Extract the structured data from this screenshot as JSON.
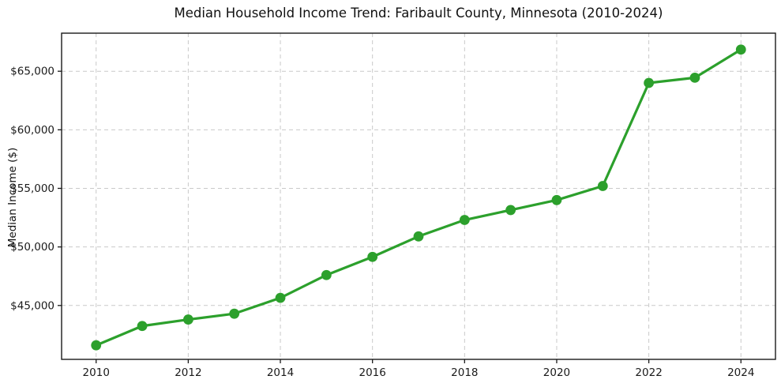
{
  "chart_data": {
    "type": "line",
    "title": "Median Household Income Trend: Faribault County, Minnesota (2010-2024)",
    "xlabel": "",
    "ylabel": "Median Income ($)",
    "series": [
      {
        "name": "Median Household Income",
        "x": [
          2010,
          2011,
          2012,
          2013,
          2014,
          2015,
          2016,
          2017,
          2018,
          2019,
          2020,
          2021,
          2022,
          2023,
          2024
        ],
        "values": [
          41600,
          43250,
          43800,
          44300,
          45650,
          47600,
          49150,
          50900,
          52300,
          53150,
          54000,
          55200,
          64000,
          64450,
          66850
        ]
      }
    ],
    "xticks": [
      2010,
      2012,
      2014,
      2016,
      2018,
      2020,
      2022,
      2024
    ],
    "xtick_labels": [
      "2010",
      "2012",
      "2014",
      "2016",
      "2018",
      "2020",
      "2022",
      "2024"
    ],
    "yticks": [
      45000,
      50000,
      55000,
      60000,
      65000
    ],
    "ytick_labels": [
      "$45,000",
      "$50,000",
      "$55,000",
      "$60,000",
      "$65,000"
    ],
    "xlim": [
      2009.25,
      2024.75
    ],
    "ylim": [
      40400,
      68250
    ],
    "grid": true,
    "grid_style": "dashed",
    "legend": "none",
    "colors": {
      "line": "#2ca02c",
      "marker": "#2ca02c",
      "grid": "#c9c9c9",
      "spine": "#1a1a1a",
      "text": "#1a1a1a",
      "background": "#ffffff"
    }
  }
}
